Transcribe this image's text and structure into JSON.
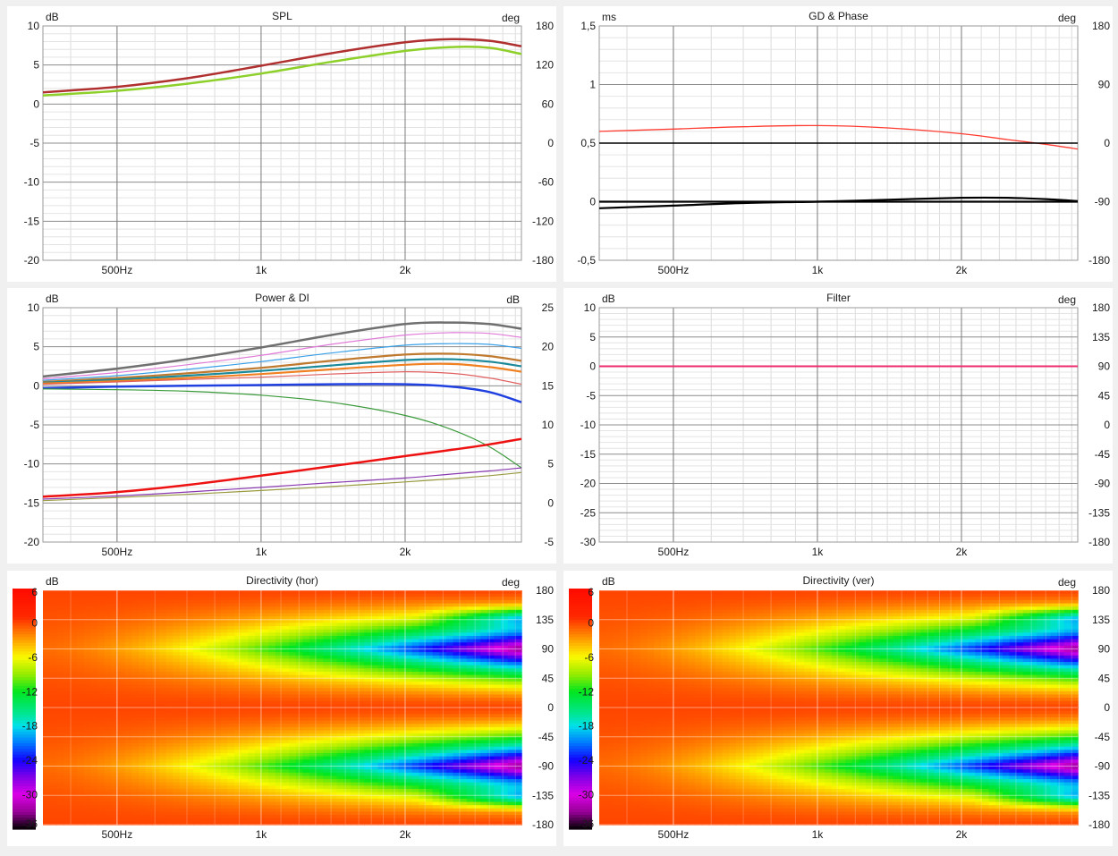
{
  "charts": [
    {
      "id": "spl",
      "kind": "line",
      "title": "SPL",
      "left_unit": "dB",
      "right_unit": "deg",
      "left_ticks": [
        "10",
        "5",
        "0",
        "-5",
        "-10",
        "-15",
        "-20"
      ],
      "right_ticks": [
        "180",
        "120",
        "60",
        "0",
        "-60",
        "-120",
        "-180"
      ],
      "x_labels": [
        "500Hz",
        "1k",
        "2k"
      ]
    },
    {
      "id": "gd",
      "kind": "line",
      "title": "GD & Phase",
      "left_unit": "ms",
      "right_unit": "deg",
      "left_ticks": [
        "1,5",
        "1",
        "0,5",
        "0",
        "-0,5"
      ],
      "right_ticks": [
        "180",
        "90",
        "0",
        "-90",
        "-180"
      ],
      "x_labels": [
        "500Hz",
        "1k",
        "2k"
      ]
    },
    {
      "id": "power",
      "kind": "line",
      "title": "Power & DI",
      "left_unit": "dB",
      "right_unit": "dB",
      "left_ticks": [
        "10",
        "5",
        "0",
        "-5",
        "-10",
        "-15",
        "-20"
      ],
      "right_ticks": [
        "25",
        "20",
        "15",
        "10",
        "5",
        "0",
        "-5"
      ],
      "x_labels": [
        "500Hz",
        "1k",
        "2k"
      ]
    },
    {
      "id": "filter",
      "kind": "line",
      "title": "Filter",
      "left_unit": "dB",
      "right_unit": "deg",
      "left_ticks": [
        "10",
        "5",
        "0",
        "-5",
        "-10",
        "-15",
        "-20",
        "-25",
        "-30"
      ],
      "right_ticks": [
        "180",
        "135",
        "90",
        "45",
        "0",
        "-45",
        "-90",
        "-135",
        "-180"
      ],
      "x_labels": [
        "500Hz",
        "1k",
        "2k"
      ]
    },
    {
      "id": "dirh",
      "kind": "heatmap",
      "title": "Directivity (hor)",
      "left_unit": "dB",
      "right_unit": "deg",
      "left_ticks": [
        "6",
        "0",
        "-6",
        "-12",
        "-18",
        "-24",
        "-30",
        "-36"
      ],
      "right_ticks": [
        "180",
        "135",
        "90",
        "45",
        "0",
        "-45",
        "-90",
        "-135",
        "-180"
      ],
      "x_labels": [
        "500Hz",
        "1k",
        "2k"
      ]
    },
    {
      "id": "dirv",
      "kind": "heatmap",
      "title": "Directivity (ver)",
      "left_unit": "dB",
      "right_unit": "deg",
      "left_ticks": [
        "6",
        "0",
        "-6",
        "-12",
        "-18",
        "-24",
        "-30",
        "-36"
      ],
      "right_ticks": [
        "180",
        "135",
        "90",
        "45",
        "0",
        "-45",
        "-90",
        "-135",
        "-180"
      ],
      "x_labels": [
        "500Hz",
        "1k",
        "2k"
      ]
    }
  ],
  "chart_data": [
    {
      "type": "line",
      "title": "SPL",
      "x_scale": "log",
      "xlim": [
        350,
        3500
      ],
      "xticks": [
        500,
        1000,
        2000
      ],
      "ylabel": "dB",
      "ylim": [
        -20,
        10
      ],
      "y2label": "deg",
      "y2lim": [
        -180,
        180
      ],
      "grid": true,
      "series": [
        {
          "color": "#b03030",
          "axis": "left",
          "x": [
            350,
            500,
            700,
            1000,
            1400,
            2000,
            2500,
            3000,
            3500
          ],
          "values": [
            1.5,
            2.2,
            3.3,
            4.9,
            6.5,
            7.9,
            8.3,
            8.1,
            7.4
          ]
        },
        {
          "color": "#8ed02a",
          "axis": "left",
          "x": [
            350,
            500,
            700,
            1000,
            1400,
            2000,
            2500,
            3000,
            3500
          ],
          "values": [
            1.1,
            1.7,
            2.6,
            3.9,
            5.4,
            6.8,
            7.3,
            7.2,
            6.4
          ]
        }
      ]
    },
    {
      "type": "line",
      "title": "GD & Phase",
      "x_scale": "log",
      "xlim": [
        350,
        3500
      ],
      "xticks": [
        500,
        1000,
        2000
      ],
      "ylabel": "ms",
      "ylim": [
        -0.5,
        1.5
      ],
      "y2label": "deg",
      "y2lim": [
        -180,
        180
      ],
      "grid": true,
      "series": [
        {
          "color": "#ff3b30",
          "axis": "left",
          "x": [
            350,
            500,
            700,
            1000,
            1400,
            2000,
            2500,
            3000,
            3500
          ],
          "values": [
            0.6,
            0.62,
            0.64,
            0.65,
            0.63,
            0.58,
            0.53,
            0.49,
            0.45
          ]
        },
        {
          "color": "#000000",
          "axis": "right",
          "x": [
            350,
            500,
            700,
            1000,
            1400,
            2000,
            2500,
            3000,
            3500
          ],
          "values": [
            -100,
            -96,
            -92,
            -90,
            -87,
            -84,
            -84,
            -86,
            -89
          ]
        },
        {
          "color": "#000000",
          "axis": "right",
          "x": [
            350,
            3500
          ],
          "values": [
            -90,
            -90
          ]
        },
        {
          "color": "#000000",
          "axis": "left",
          "x": [
            350,
            3500
          ],
          "values": [
            0.5,
            0.5
          ]
        }
      ]
    },
    {
      "type": "line",
      "title": "Power & DI",
      "x_scale": "log",
      "xlim": [
        350,
        3500
      ],
      "xticks": [
        500,
        1000,
        2000
      ],
      "ylabel": "dB",
      "ylim": [
        -20,
        10
      ],
      "y2label": "dB",
      "y2lim": [
        -5,
        25
      ],
      "grid": true,
      "series": [
        {
          "color": "#707070",
          "axis": "left",
          "x": [
            350,
            500,
            700,
            1000,
            1400,
            2000,
            2500,
            3000,
            3500
          ],
          "values": [
            1.2,
            2.2,
            3.4,
            4.9,
            6.5,
            7.9,
            8.1,
            7.9,
            7.3
          ]
        },
        {
          "color": "#e07ad8",
          "axis": "left",
          "x": [
            350,
            500,
            700,
            1000,
            1400,
            2000,
            2500,
            3000,
            3500
          ],
          "values": [
            0.9,
            1.7,
            2.7,
            3.9,
            5.3,
            6.5,
            6.8,
            6.7,
            6.2
          ]
        },
        {
          "color": "#3aa0e8",
          "axis": "left",
          "x": [
            350,
            500,
            700,
            1000,
            1400,
            2000,
            2500,
            3000,
            3500
          ],
          "values": [
            0.7,
            1.3,
            2.1,
            3.1,
            4.2,
            5.2,
            5.4,
            5.3,
            4.8
          ]
        },
        {
          "color": "#c07a30",
          "axis": "left",
          "x": [
            350,
            500,
            700,
            1000,
            1400,
            2000,
            2500,
            3000,
            3500
          ],
          "values": [
            0.5,
            1.0,
            1.6,
            2.3,
            3.2,
            4.0,
            4.1,
            3.8,
            3.2
          ]
        },
        {
          "color": "#1a8a9a",
          "axis": "left",
          "x": [
            350,
            500,
            700,
            1000,
            1400,
            2000,
            2500,
            3000,
            3500
          ],
          "values": [
            0.4,
            0.8,
            1.3,
            1.9,
            2.6,
            3.3,
            3.4,
            3.1,
            2.5
          ]
        },
        {
          "color": "#f08020",
          "axis": "left",
          "x": [
            350,
            500,
            700,
            1000,
            1400,
            2000,
            2500,
            3000,
            3500
          ],
          "values": [
            0.3,
            0.6,
            1.0,
            1.5,
            2.1,
            2.7,
            2.8,
            2.4,
            1.8
          ]
        },
        {
          "color": "#e06060",
          "axis": "left",
          "x": [
            350,
            500,
            700,
            1000,
            1400,
            2000,
            2500,
            3000,
            3500
          ],
          "values": [
            0.2,
            0.5,
            0.8,
            1.1,
            1.5,
            1.8,
            1.6,
            1.0,
            0.2
          ]
        },
        {
          "color": "#2040e0",
          "axis": "left",
          "x": [
            350,
            500,
            700,
            1000,
            1400,
            2000,
            2500,
            3000,
            3500
          ],
          "values": [
            -0.3,
            -0.1,
            0.0,
            0.1,
            0.2,
            0.2,
            -0.1,
            -0.8,
            -2.1
          ]
        },
        {
          "color": "#3a9a3a",
          "axis": "left",
          "x": [
            350,
            500,
            700,
            1000,
            1400,
            2000,
            2500,
            3000,
            3500
          ],
          "values": [
            -0.4,
            -0.5,
            -0.7,
            -1.2,
            -2.1,
            -3.8,
            -5.6,
            -7.8,
            -10.5
          ]
        },
        {
          "color": "#ee1111",
          "axis": "left",
          "x": [
            350,
            500,
            700,
            1000,
            1400,
            2000,
            2500,
            3000,
            3500
          ],
          "values": [
            -14.2,
            -13.6,
            -12.7,
            -11.5,
            -10.3,
            -9.0,
            -8.2,
            -7.5,
            -6.8
          ]
        },
        {
          "color": "#8a3ab0",
          "axis": "left",
          "x": [
            350,
            500,
            700,
            1000,
            1400,
            2000,
            2500,
            3000,
            3500
          ],
          "values": [
            -14.5,
            -14.1,
            -13.6,
            -13.0,
            -12.4,
            -11.8,
            -11.3,
            -10.9,
            -10.5
          ]
        },
        {
          "color": "#9a9a40",
          "axis": "left",
          "x": [
            350,
            500,
            700,
            1000,
            1400,
            2000,
            2500,
            3000,
            3500
          ],
          "values": [
            -14.7,
            -14.3,
            -13.9,
            -13.4,
            -12.9,
            -12.3,
            -11.9,
            -11.5,
            -11.1
          ]
        }
      ]
    },
    {
      "type": "line",
      "title": "Filter",
      "x_scale": "log",
      "xlim": [
        350,
        3500
      ],
      "xticks": [
        500,
        1000,
        2000
      ],
      "ylabel": "dB",
      "ylim": [
        -30,
        10
      ],
      "y2label": "deg",
      "y2lim": [
        -180,
        180
      ],
      "grid": true,
      "series": [
        {
          "color": "#7a7af0",
          "axis": "left",
          "x": [
            350,
            3500
          ],
          "values": [
            0,
            0
          ]
        },
        {
          "color": "#ee2c6c",
          "axis": "left",
          "x": [
            350,
            3500
          ],
          "values": [
            0,
            0
          ]
        }
      ]
    },
    {
      "type": "heatmap",
      "title": "Directivity (hor)",
      "x_scale": "log",
      "xlim": [
        350,
        3500
      ],
      "xticks": [
        500,
        1000,
        2000
      ],
      "ylabel": "deg",
      "ylim": [
        -180,
        180
      ],
      "colorbar_label": "dB",
      "colorbar_range": [
        -36,
        6
      ],
      "grid": true
    },
    {
      "type": "heatmap",
      "title": "Directivity (ver)",
      "x_scale": "log",
      "xlim": [
        350,
        3500
      ],
      "xticks": [
        500,
        1000,
        2000
      ],
      "ylabel": "deg",
      "ylim": [
        -180,
        180
      ],
      "colorbar_label": "dB",
      "colorbar_range": [
        -36,
        6
      ],
      "grid": true
    }
  ]
}
